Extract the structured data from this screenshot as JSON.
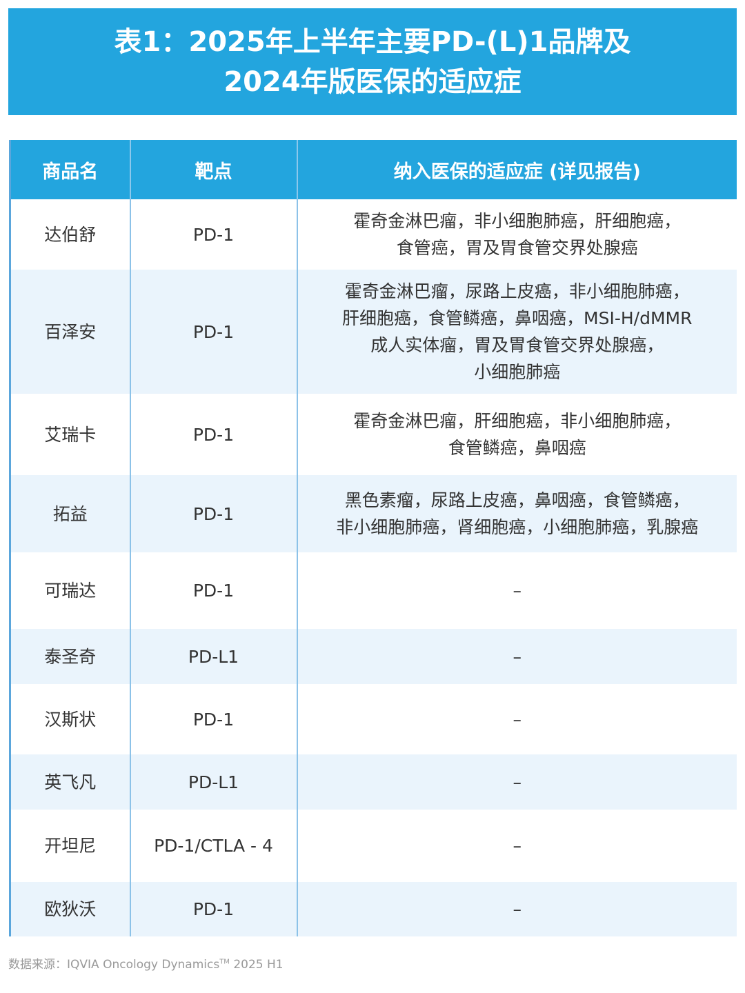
{
  "title": {
    "line1": "表1：2025年上半年主要PD-(L)1品牌及",
    "line2": "2024年版医保的适应症"
  },
  "colors": {
    "header": "#23a5de",
    "alt_row": "#eaf4fc"
  },
  "table": {
    "headers": [
      "商品名",
      "靶点",
      "纳入医保的适应症 (详见报告)"
    ],
    "rows": [
      {
        "name": "达伯舒",
        "target": "PD-1",
        "indications": "霍奇金淋巴瘤，非小细胞肺癌，肝细胞癌，\n食管癌，胃及胃食管交界处腺癌"
      },
      {
        "name": "百泽安",
        "target": "PD-1",
        "indications": "霍奇金淋巴瘤，尿路上皮癌，非小细胞肺癌，\n肝细胞癌，食管鳞癌，鼻咽癌，MSI-H/dMMR\n成人实体瘤，胃及胃食管交界处腺癌，\n小细胞肺癌"
      },
      {
        "name": "艾瑞卡",
        "target": "PD-1",
        "indications": "霍奇金淋巴瘤，肝细胞癌，非小细胞肺癌，\n食管鳞癌，鼻咽癌"
      },
      {
        "name": "拓益",
        "target": "PD-1",
        "indications": "黑色素瘤，尿路上皮癌，鼻咽癌，食管鳞癌，\n非小细胞肺癌，肾细胞癌，小细胞肺癌，乳腺癌"
      },
      {
        "name": "可瑞达",
        "target": "PD-1",
        "indications": "–"
      },
      {
        "name": "泰圣奇",
        "target": "PD-L1",
        "indications": "–"
      },
      {
        "name": "汉斯状",
        "target": "PD-1",
        "indications": "–"
      },
      {
        "name": "英飞凡",
        "target": "PD-L1",
        "indications": "–"
      },
      {
        "name": "开坦尼",
        "target": "PD-1/CTLA - 4",
        "indications": "–"
      },
      {
        "name": "欧狄沃",
        "target": "PD-1",
        "indications": "–"
      }
    ]
  },
  "source": {
    "text": "数据来源：IQVIA Oncology Dynamics",
    "tm": "TM",
    "suffix": " 2025 H1"
  }
}
